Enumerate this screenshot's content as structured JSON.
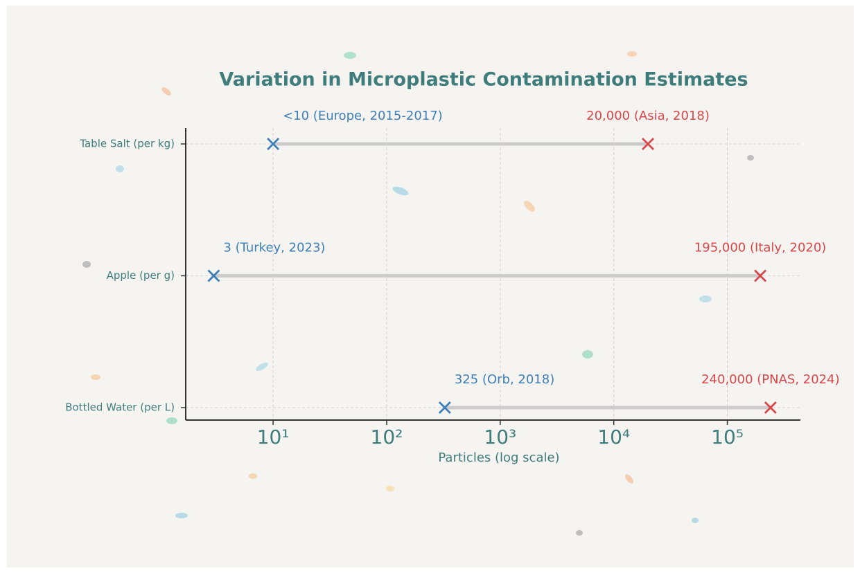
{
  "chart_data": {
    "type": "dumbbell",
    "title": "Variation in Microplastic Contamination Estimates",
    "x_label": "Particles (log scale)",
    "categories": [
      "Table Salt (per kg)",
      "Apple (per g)",
      "Bottled Water (per L)"
    ],
    "series": [
      {
        "color": "#3d7fb8",
        "values": [
          10,
          3,
          325
        ],
        "value_labels": [
          "<10 (Europe, 2015-2017)",
          "3 (Turkey, 2023)",
          "325 (Orb, 2018)"
        ]
      },
      {
        "color": "#d9474a",
        "values": [
          20000,
          195000,
          240000
        ],
        "value_labels": [
          "20,000 (Asia, 2018)",
          "195,000 (Italy, 2020)",
          "240,000 (PNAS, 2024)"
        ]
      }
    ],
    "x_log": true,
    "xlim": [
      1.7,
      440000
    ],
    "xticks": [
      {
        "value": 10,
        "label": "10¹"
      },
      {
        "value": 100,
        "label": "10²"
      },
      {
        "value": 1000,
        "label": "10³"
      },
      {
        "value": 10000,
        "label": "10⁴"
      },
      {
        "value": 100000,
        "label": "10⁵"
      }
    ],
    "grid": true
  }
}
